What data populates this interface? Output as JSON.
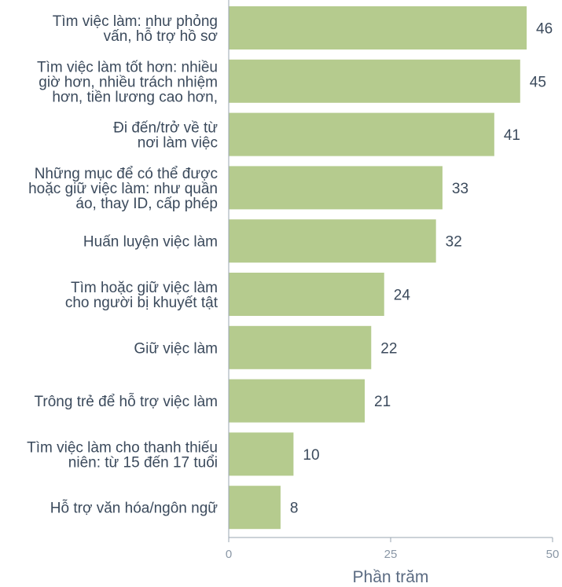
{
  "chart_data": {
    "type": "bar",
    "orientation": "horizontal",
    "categories": [
      [
        "Tìm việc làm: như phỏng",
        "vấn, hỗ trợ hồ sơ"
      ],
      [
        "Tìm việc làm tốt hơn: nhiều",
        "giờ hơn, nhiều trách nhiệm",
        "hơn, tiền lương cao hơn,"
      ],
      [
        "Đi đến/trở về từ",
        "nơi làm việc"
      ],
      [
        "Những mục để có thể được",
        "hoặc giữ việc làm: như quần",
        "áo, thay ID, cấp phép"
      ],
      [
        "Huấn luyện việc làm"
      ],
      [
        "Tìm hoặc giữ việc làm",
        "cho người bị khuyết tật"
      ],
      [
        "Giữ việc làm"
      ],
      [
        "Trông trẻ để hỗ trợ việc làm"
      ],
      [
        "Tìm việc làm cho thanh thiếu",
        "niên: từ 15 đến 17 tuổi"
      ],
      [
        "Hỗ trợ văn hóa/ngôn ngữ"
      ]
    ],
    "values": [
      46,
      45,
      41,
      33,
      32,
      24,
      22,
      21,
      10,
      8
    ],
    "xlabel": "Phần trăm",
    "xlim": [
      0,
      50
    ],
    "xticks": [
      0,
      25,
      50
    ],
    "grid": false,
    "bar_color": "#b5cb8e"
  }
}
